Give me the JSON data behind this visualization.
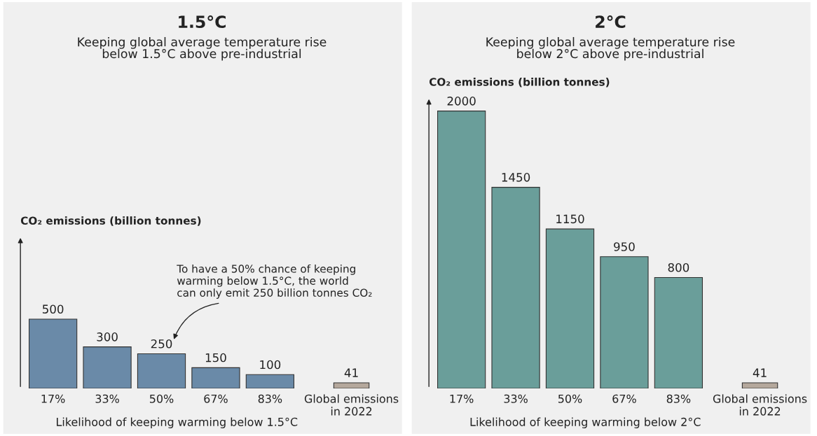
{
  "chart_data": [
    {
      "type": "bar",
      "title": "1.5°C",
      "subtitle": "Keeping global average temperature rise\nbelow 1.5°C above pre-industrial",
      "ylabel": "CO₂ emissions (billion tonnes)",
      "xlabel": "Likelihood of keeping warming below 1.5°C",
      "categories": [
        "17%",
        "33%",
        "50%",
        "67%",
        "83%",
        "Global emissions\nin 2022"
      ],
      "values": [
        500,
        300,
        250,
        150,
        100,
        41
      ],
      "colors": [
        "#6a8aa8",
        "#6a8aa8",
        "#6a8aa8",
        "#6a8aa8",
        "#6a8aa8",
        "#b5a89c"
      ],
      "data_labels": true,
      "annotations": [
        "To have a 50% chance of keeping\nwarming below 1.5°C, the world\ncan only emit 250 billion tonnes CO₂"
      ]
    },
    {
      "type": "bar",
      "title": "2°C",
      "subtitle": "Keeping global average temperature rise\nbelow 2°C above pre-industrial",
      "ylabel": "CO₂ emissions (billion tonnes)",
      "xlabel": "Likelihood of keeping warming below 2°C",
      "categories": [
        "17%",
        "33%",
        "50%",
        "67%",
        "83%",
        "Global emissions\nin 2022"
      ],
      "values": [
        2000,
        1450,
        1150,
        950,
        800,
        41
      ],
      "colors": [
        "#6a9e9a",
        "#6a9e9a",
        "#6a9e9a",
        "#6a9e9a",
        "#6a9e9a",
        "#b5a89c"
      ],
      "data_labels": true
    }
  ]
}
